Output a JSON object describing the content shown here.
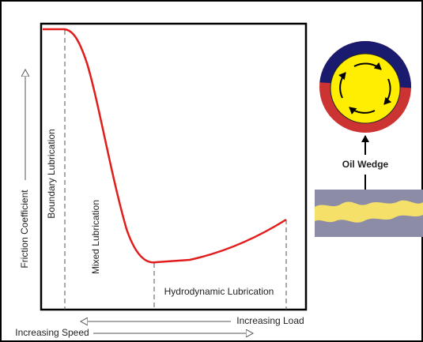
{
  "diagram": {
    "axis_labels": {
      "y": "Friction Coefficient",
      "x_top": "Increasing Load",
      "x_bottom": "Increasing Speed"
    },
    "regions": [
      "Boundary Lubrication",
      "Mixed Lubrication",
      "Hydrodynamic Lubrication"
    ],
    "side_label": "Oil Wedge"
  }
}
